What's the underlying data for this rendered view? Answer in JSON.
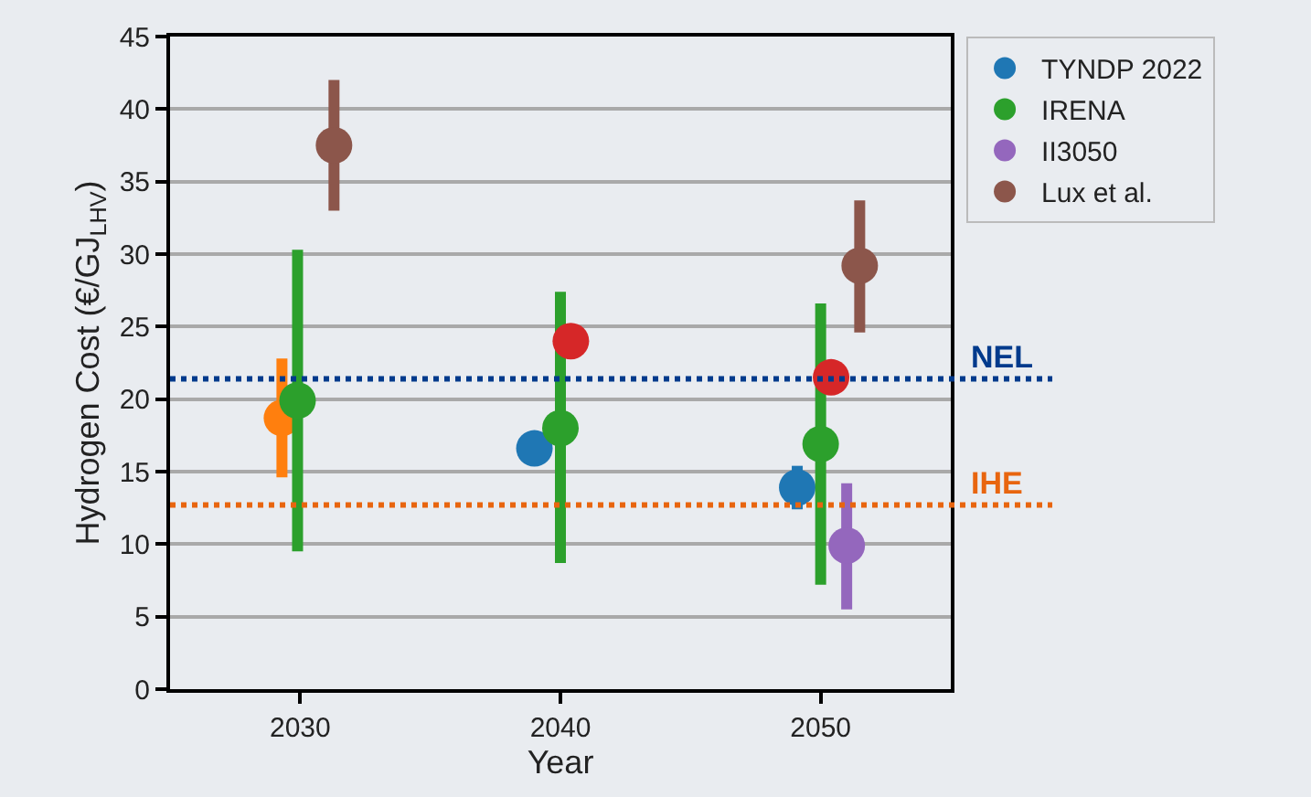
{
  "chart_data": {
    "type": "scatter",
    "xlabel": "Year",
    "ylabel": "Hydrogen Cost (€/GJ$_{LHV}$)",
    "xlim": [
      2025,
      2055
    ],
    "xticks": [
      2030,
      2040,
      2050
    ],
    "ylim": [
      0,
      45
    ],
    "yticks": [
      0,
      5,
      10,
      15,
      20,
      25,
      30,
      35,
      40,
      45
    ],
    "grid": "y",
    "legend": "top right",
    "marker": "circle",
    "series": [
      {
        "name": "TYNDP 2022",
        "color": "#1f77b4",
        "x": [
          2039.0,
          2049.1
        ],
        "values": [
          16.6,
          13.9
        ],
        "errors": [
          null,
          [
            12.4,
            15.4
          ]
        ]
      },
      {
        "color": "#ff7f0e",
        "x": [
          2029.3
        ],
        "values": [
          18.7
        ],
        "errors": [
          [
            14.6,
            22.8
          ]
        ]
      },
      {
        "name": "IRENA",
        "color": "#2ca02c",
        "x": [
          2029.9,
          2040.0,
          2050.0
        ],
        "values": [
          19.9,
          18.0,
          16.9
        ],
        "errors": [
          [
            9.5,
            30.3
          ],
          [
            8.7,
            27.4
          ],
          [
            7.2,
            26.6
          ]
        ]
      },
      {
        "color": "#d62728",
        "x": [
          2040.4,
          2050.4
        ],
        "values": [
          24.0,
          21.5
        ],
        "errors": [
          null,
          null
        ]
      },
      {
        "name": "II3050",
        "color": "#9467bd",
        "x": [
          2051.0
        ],
        "values": [
          9.9
        ],
        "errors": [
          [
            5.5,
            14.2
          ]
        ]
      },
      {
        "name": "Lux et al.",
        "color": "#8c564b",
        "x": [
          2031.3,
          2051.5
        ],
        "values": [
          37.5,
          29.2
        ],
        "errors": [
          [
            33.0,
            42.0
          ],
          [
            24.6,
            33.7
          ]
        ]
      }
    ],
    "ref_lines": [
      {
        "axis": "y",
        "value": 21.4,
        "label": "NEL",
        "color": "#003a8c",
        "line_style": "dotted"
      },
      {
        "axis": "y",
        "value": 12.7,
        "label": "IHE",
        "color": "#e8650f",
        "line_style": "dotted"
      }
    ]
  }
}
